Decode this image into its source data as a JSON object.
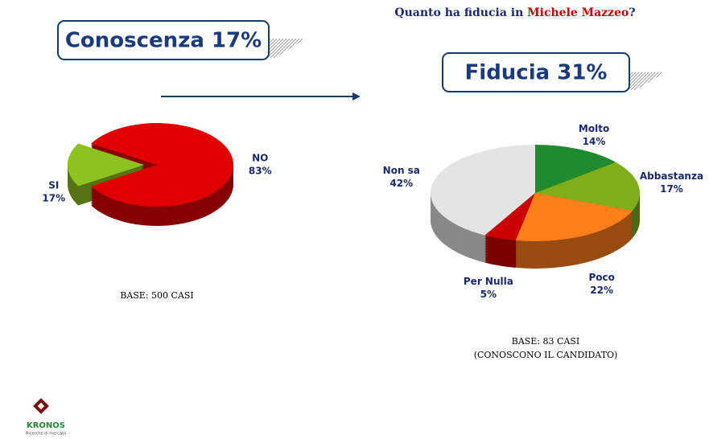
{
  "header": {
    "title_start": "Quanto ha fiducia in",
    "title_name": "Michele Mazzeo",
    "title_end": "?"
  },
  "chart_data": [
    {
      "type": "pie",
      "headline": "Conoscenza 17%",
      "categories": [
        "SI",
        "NO"
      ],
      "values": [
        17,
        83
      ],
      "value_labels": [
        "17%",
        "83%"
      ],
      "colors": [
        "#8dc21f",
        "#e00000"
      ],
      "notes": [
        "BASE: 500 CASI"
      ]
    },
    {
      "type": "pie",
      "headline": "Fiducia 31%",
      "categories": [
        "Molto",
        "Abbastanza",
        "Poco",
        "Per Nulla",
        "Non sa"
      ],
      "values": [
        14,
        17,
        22,
        5,
        42
      ],
      "value_labels": [
        "14%",
        "17%",
        "22%",
        "5%",
        "42%"
      ],
      "colors": [
        "#1f8a2e",
        "#7fae1a",
        "#ff7f1a",
        "#cc0000",
        "#e4e4e4"
      ],
      "notes": [
        "BASE: 83 CASI",
        "(CONOSCONO IL CANDIDATO)"
      ]
    }
  ],
  "logo": {
    "name": "KRONOS",
    "tagline": "Ricerche di mercato"
  }
}
